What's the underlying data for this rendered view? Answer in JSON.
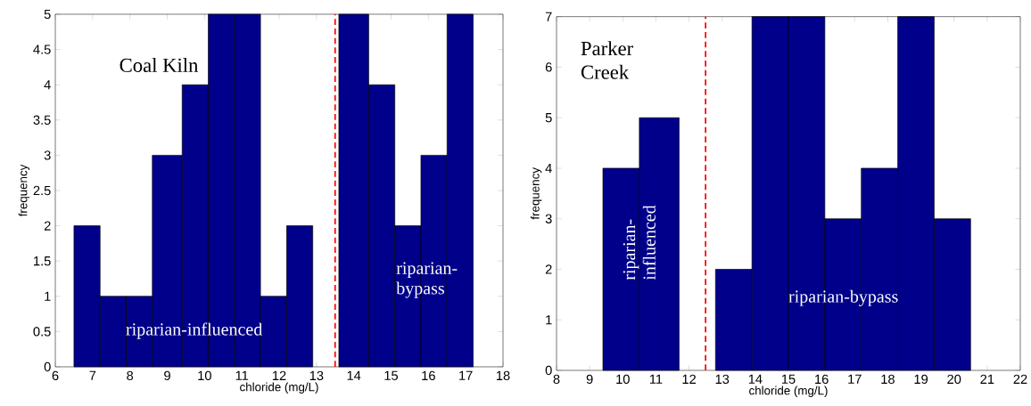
{
  "chart_data": [
    {
      "type": "histogram",
      "title": "Coal Kiln",
      "xlabel": "chloride (mg/L)",
      "ylabel": "frequency",
      "color": "#00008b",
      "bins": [
        6.5,
        7.2,
        7.9,
        8.6,
        9.4,
        10.1,
        10.8,
        11.5,
        12.2,
        12.9,
        13.6,
        14.4,
        15.1,
        15.8,
        16.5,
        17.2
      ],
      "values": [
        2,
        1,
        1,
        3,
        4,
        5,
        5,
        1,
        2,
        0,
        5,
        4,
        2,
        3,
        5
      ],
      "xlim": [
        6,
        18
      ],
      "ylim": [
        0,
        5
      ],
      "xticks": [
        6,
        7,
        8,
        9,
        10,
        11,
        12,
        13,
        14,
        15,
        16,
        17,
        18
      ],
      "yticks": [
        0,
        0.5,
        1,
        1.5,
        2,
        2.5,
        3,
        3.5,
        4,
        4.5,
        5
      ],
      "ref_lines": [
        {
          "axis": "x",
          "value": 13.5,
          "color": "#ff0000",
          "line_style": "dashed"
        }
      ],
      "annotations": [
        "riparian-influenced",
        "riparian-bypass"
      ]
    },
    {
      "type": "histogram",
      "title": "Parker Creek",
      "xlabel": "chloride (mg/L)",
      "ylabel": "frequency",
      "color": "#00008b",
      "bins": [
        9.4,
        10.5,
        11.7,
        12.8,
        13.9,
        15.0,
        16.1,
        17.2,
        18.3,
        19.4,
        20.5
      ],
      "values": [
        4,
        5,
        0,
        2,
        7,
        7,
        3,
        4,
        7,
        3
      ],
      "xlim": [
        8,
        22
      ],
      "ylim": [
        0,
        7
      ],
      "xticks": [
        8,
        9,
        10,
        11,
        12,
        13,
        14,
        15,
        16,
        17,
        18,
        19,
        20,
        21,
        22
      ],
      "yticks": [
        0,
        1,
        2,
        3,
        4,
        5,
        6,
        7
      ],
      "ref_lines": [
        {
          "axis": "x",
          "value": 12.5,
          "color": "#ff0000",
          "line_style": "dashed"
        }
      ],
      "annotations": [
        "riparian-influenced",
        "riparian-bypass"
      ]
    }
  ]
}
